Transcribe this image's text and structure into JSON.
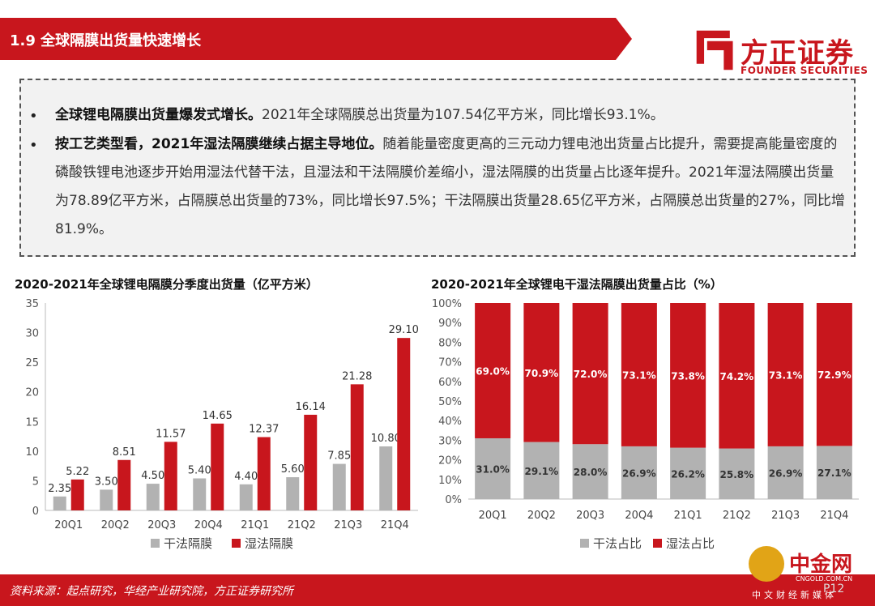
{
  "header": {
    "title": "1.9 全球隔膜出货量快速增长",
    "logo_name": "方正证券",
    "logo_en": "FOUNDER SECURITIES"
  },
  "summary": {
    "bullet1_bold": "全球锂电隔膜出货量爆发式增长。",
    "bullet1_text": "2021年全球隔膜总出货量为107.54亿平方米，同比增长93.1%。",
    "bullet2_bold": "按工艺类型看，2021年湿法隔膜继续占据主导地位。",
    "bullet2_text": "随着能量密度更高的三元动力锂电池出货量占比提升，需要提高能量密度的磷酸铁锂电池逐步开始用湿法代替干法，且湿法和干法隔膜价差缩小，湿法隔膜的出货量占比逐年提升。2021年湿法隔膜出货量为78.89亿平方米，占隔膜总出货量的73%，同比增长97.5%；干法隔膜出货量28.65亿平方米，占隔膜总出货量的27%，同比增81.9%。"
  },
  "colors": {
    "red": "#c8161d",
    "gray": "#b2b2b2"
  },
  "chart_data": [
    {
      "type": "bar",
      "title": "2020-2021年全球锂电隔膜分季度出货量（亿平方米）",
      "categories": [
        "20Q1",
        "20Q2",
        "20Q3",
        "20Q4",
        "21Q1",
        "21Q2",
        "21Q3",
        "21Q4"
      ],
      "series": [
        {
          "name": "干法隔膜",
          "values": [
            2.35,
            3.5,
            4.5,
            5.4,
            4.4,
            5.6,
            7.85,
            10.8
          ],
          "labels": [
            "2.35",
            "3.50",
            "4.50",
            "5.40",
            "4.40",
            "5.60",
            "7.85",
            "10.80"
          ]
        },
        {
          "name": "湿法隔膜",
          "values": [
            5.22,
            8.51,
            11.57,
            14.65,
            12.37,
            16.14,
            21.28,
            29.1
          ],
          "labels": [
            "5.22",
            "8.51",
            "11.57",
            "14.65",
            "12.37",
            "16.14",
            "21.28",
            "29.10"
          ]
        }
      ],
      "yticks": [
        "0",
        "5",
        "10",
        "15",
        "20",
        "25",
        "30",
        "35"
      ],
      "ylim": [
        0,
        35
      ],
      "legend": "bottom"
    },
    {
      "type": "bar",
      "title": "2020-2021年全球锂电干湿法隔膜出货量占比（%）",
      "categories": [
        "20Q1",
        "20Q2",
        "20Q3",
        "20Q4",
        "21Q1",
        "21Q2",
        "21Q3",
        "21Q4"
      ],
      "series": [
        {
          "name": "干法占比",
          "values": [
            31.0,
            29.1,
            28.0,
            26.9,
            26.2,
            25.8,
            26.9,
            27.1
          ],
          "labels": [
            "31.0%",
            "29.1%",
            "28.0%",
            "26.9%",
            "26.2%",
            "25.8%",
            "26.9%",
            "27.1%"
          ]
        },
        {
          "name": "湿法占比",
          "values": [
            69.0,
            70.9,
            72.0,
            73.1,
            73.8,
            74.2,
            73.1,
            72.9
          ],
          "labels": [
            "69.0%",
            "70.9%",
            "72.0%",
            "73.1%",
            "73.8%",
            "74.2%",
            "73.1%",
            "72.9%"
          ]
        }
      ],
      "yticks": [
        "0%",
        "10%",
        "20%",
        "30%",
        "40%",
        "50%",
        "60%",
        "70%",
        "80%",
        "90%",
        "100%"
      ],
      "ylim": [
        0,
        100
      ],
      "stacked": true,
      "legend": "bottom"
    }
  ],
  "footer": {
    "source": "资料来源：起点研究，华经产业研究院，方正证券研究所",
    "page": "P12"
  },
  "watermark": {
    "name": "中金网",
    "url": "CNGOLD.COM.CN",
    "sub": "中文财经新媒体"
  }
}
